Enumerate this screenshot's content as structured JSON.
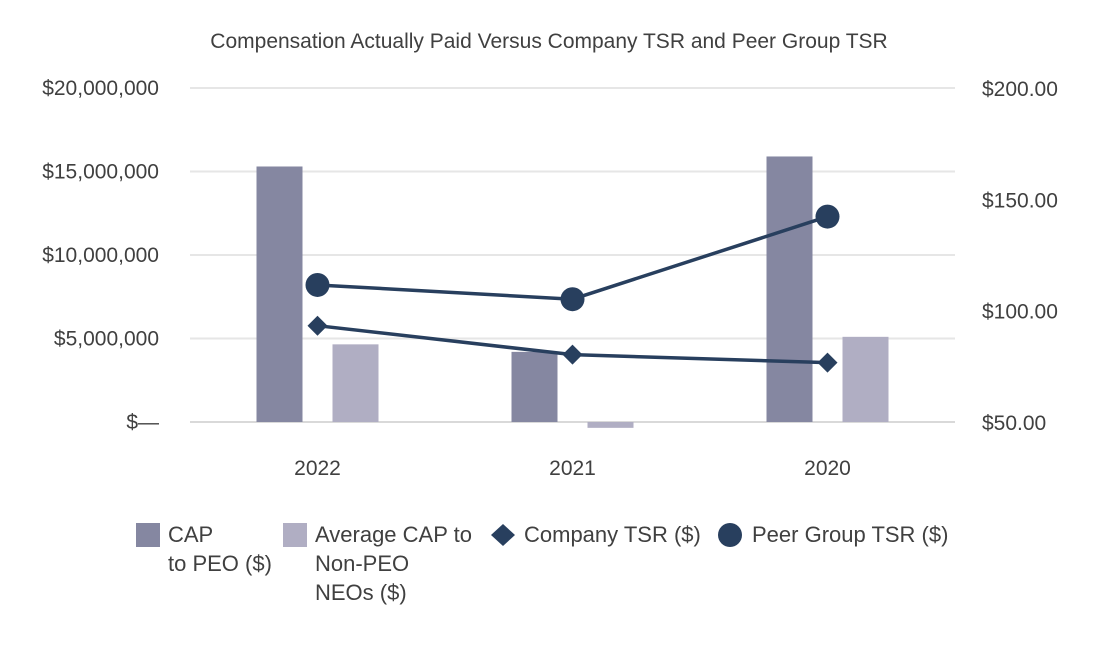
{
  "chart_data": {
    "type": "bar",
    "title": "Compensation Actually Paid Versus Company TSR and Peer Group TSR",
    "categories": [
      "2022",
      "2021",
      "2020"
    ],
    "y_left": {
      "ylim": [
        0,
        20000000
      ],
      "ticks": [
        0,
        5000000,
        10000000,
        15000000,
        20000000
      ],
      "tick_labels": [
        "$—",
        "$5,000,000",
        "$10,000,000",
        "$15,000,000",
        "$20,000,000"
      ]
    },
    "y_right": {
      "ylim": [
        50,
        200
      ],
      "ticks": [
        50,
        100,
        150,
        200
      ],
      "tick_labels": [
        "$50.00",
        "$100.00",
        "$150.00",
        "$200.00"
      ]
    },
    "series": [
      {
        "name": "CAP to PEO ($)",
        "legend_label": "CAP\nto PEO ($)",
        "type": "bar",
        "axis": "left",
        "color": "#8587a1",
        "values": [
          15300000,
          4200000,
          15900000
        ]
      },
      {
        "name": "Average CAP to Non-PEO NEOs ($)",
        "legend_label": "Average CAP to\nNon-PEO\nNEOs ($)",
        "type": "bar",
        "axis": "left",
        "color": "#b0aec3",
        "values": [
          4650000,
          -350000,
          5100000
        ]
      },
      {
        "name": "Company TSR ($)",
        "legend_label": "Company TSR ($)",
        "type": "line",
        "marker": "diamond",
        "axis": "right",
        "color": "#283f5e",
        "values": [
          93.7,
          80.7,
          77.1
        ]
      },
      {
        "name": "Peer Group TSR ($)",
        "legend_label": "Peer Group TSR ($)",
        "type": "line",
        "marker": "circle",
        "axis": "right",
        "color": "#283f5e",
        "values": [
          112.0,
          105.6,
          142.7
        ]
      }
    ],
    "grid": true,
    "legend": "bottom"
  }
}
